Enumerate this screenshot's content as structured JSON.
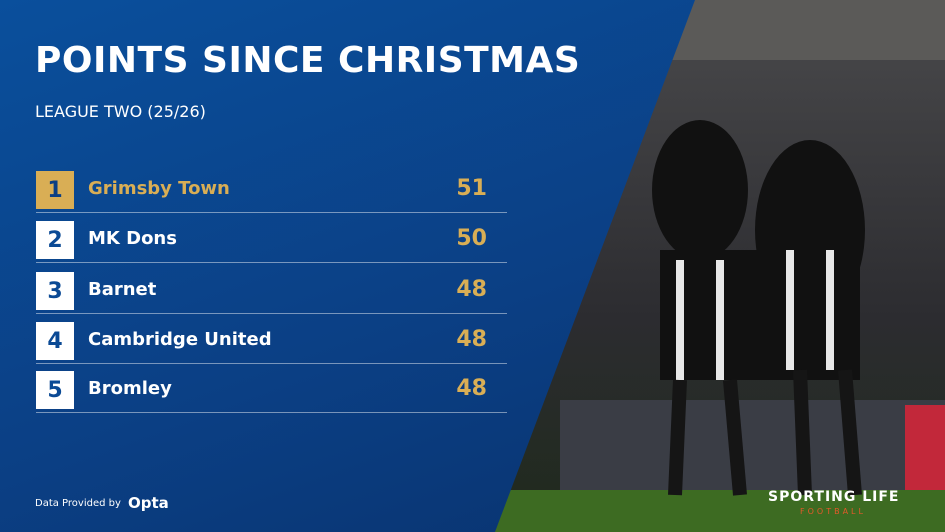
{
  "header": {
    "title": "POINTS SINCE CHRISTMAS",
    "subtitle": "LEAGUE TWO (25/26)"
  },
  "table": {
    "rows": [
      [
        "1",
        "Grimsby Town",
        "51"
      ],
      [
        "2",
        "MK Dons",
        "50"
      ],
      [
        "3",
        "Barnet",
        "48"
      ],
      [
        "4",
        "Cambridge United",
        "48"
      ],
      [
        "5",
        "Bromley",
        "48"
      ]
    ]
  },
  "footer": {
    "credit": "Data Provided by",
    "provider": "Opta",
    "brand": "SPORTING LIFE",
    "brand_sub": "FOOTBALL"
  }
}
